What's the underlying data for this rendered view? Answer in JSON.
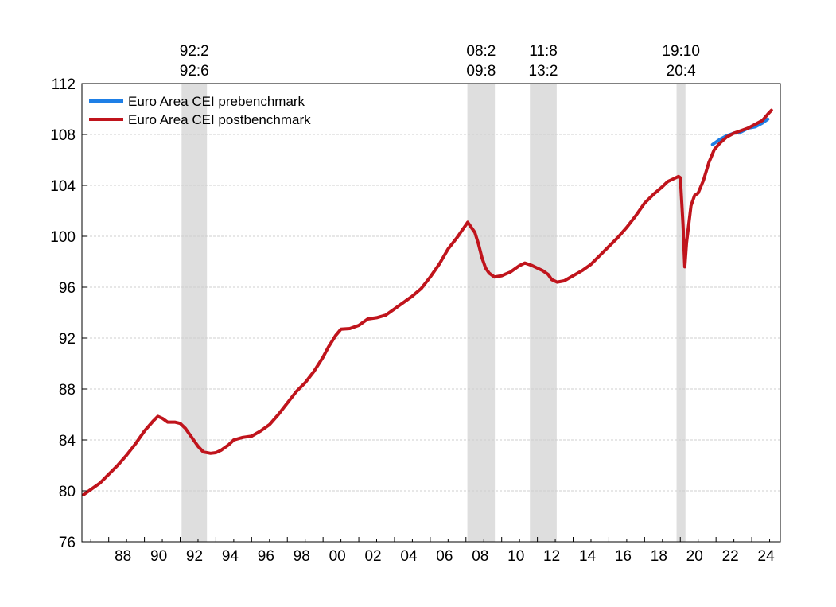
{
  "chart_data": {
    "type": "line",
    "title": "",
    "xlabel": "",
    "ylabel": "",
    "xlim": [
      1986.5,
      2025.6
    ],
    "ylim": [
      76,
      112
    ],
    "y_ticks": [
      76,
      80,
      84,
      88,
      92,
      96,
      100,
      104,
      108,
      112
    ],
    "x_ticks": [
      {
        "x": 1988,
        "label": "88"
      },
      {
        "x": 1990,
        "label": "90"
      },
      {
        "x": 1992,
        "label": "92"
      },
      {
        "x": 1994,
        "label": "94"
      },
      {
        "x": 1996,
        "label": "96"
      },
      {
        "x": 1998,
        "label": "98"
      },
      {
        "x": 2000,
        "label": "00"
      },
      {
        "x": 2002,
        "label": "02"
      },
      {
        "x": 2004,
        "label": "04"
      },
      {
        "x": 2006,
        "label": "06"
      },
      {
        "x": 2008,
        "label": "08"
      },
      {
        "x": 2010,
        "label": "10"
      },
      {
        "x": 2012,
        "label": "12"
      },
      {
        "x": 2014,
        "label": "14"
      },
      {
        "x": 2016,
        "label": "16"
      },
      {
        "x": 2018,
        "label": "18"
      },
      {
        "x": 2020,
        "label": "20"
      },
      {
        "x": 2022,
        "label": "22"
      },
      {
        "x": 2024,
        "label": "24"
      }
    ],
    "grid": true,
    "legend_position": "top-left",
    "recessions": [
      {
        "start": 1992.08,
        "end": 1993.5,
        "peak_label": "92:2",
        "trough_label": "92:6"
      },
      {
        "start": 2008.08,
        "end": 2009.62,
        "peak_label": "08:2",
        "trough_label": "09:8"
      },
      {
        "start": 2011.58,
        "end": 2013.08,
        "peak_label": "11:8",
        "trough_label": "13:2"
      },
      {
        "start": 2019.79,
        "end": 2020.29,
        "peak_label": "19:10",
        "trough_label": "20:4"
      }
    ],
    "series": [
      {
        "name": "Euro Area CEI prebenchmark",
        "color": "#1E7FE6",
        "points": [
          [
            2021.8,
            107.2
          ],
          [
            2022.2,
            107.6
          ],
          [
            2022.6,
            107.9
          ],
          [
            2023.0,
            108.1
          ],
          [
            2023.4,
            108.2
          ],
          [
            2023.8,
            108.5
          ],
          [
            2024.2,
            108.6
          ],
          [
            2024.6,
            108.9
          ],
          [
            2024.9,
            109.2
          ]
        ]
      },
      {
        "name": "Euro Area CEI postbenchmark",
        "color": "#C0141C",
        "points": [
          [
            1986.6,
            79.7
          ],
          [
            1987.0,
            80.1
          ],
          [
            1987.5,
            80.6
          ],
          [
            1988.0,
            81.3
          ],
          [
            1988.5,
            82.0
          ],
          [
            1989.0,
            82.8
          ],
          [
            1989.5,
            83.7
          ],
          [
            1990.0,
            84.7
          ],
          [
            1990.5,
            85.5
          ],
          [
            1990.75,
            85.85
          ],
          [
            1991.0,
            85.7
          ],
          [
            1991.3,
            85.4
          ],
          [
            1991.7,
            85.4
          ],
          [
            1992.0,
            85.3
          ],
          [
            1992.3,
            84.9
          ],
          [
            1992.7,
            84.1
          ],
          [
            1993.0,
            83.5
          ],
          [
            1993.3,
            83.05
          ],
          [
            1993.7,
            82.95
          ],
          [
            1994.0,
            83.0
          ],
          [
            1994.3,
            83.2
          ],
          [
            1994.7,
            83.6
          ],
          [
            1995.0,
            84.0
          ],
          [
            1995.5,
            84.2
          ],
          [
            1996.0,
            84.3
          ],
          [
            1996.5,
            84.7
          ],
          [
            1997.0,
            85.2
          ],
          [
            1997.5,
            86.0
          ],
          [
            1998.0,
            86.9
          ],
          [
            1998.5,
            87.8
          ],
          [
            1999.0,
            88.5
          ],
          [
            1999.5,
            89.4
          ],
          [
            2000.0,
            90.5
          ],
          [
            2000.3,
            91.3
          ],
          [
            2000.7,
            92.2
          ],
          [
            2001.0,
            92.7
          ],
          [
            2001.5,
            92.75
          ],
          [
            2002.0,
            93.0
          ],
          [
            2002.5,
            93.5
          ],
          [
            2003.0,
            93.6
          ],
          [
            2003.5,
            93.8
          ],
          [
            2004.0,
            94.3
          ],
          [
            2004.5,
            94.8
          ],
          [
            2005.0,
            95.3
          ],
          [
            2005.5,
            95.9
          ],
          [
            2006.0,
            96.8
          ],
          [
            2006.5,
            97.8
          ],
          [
            2007.0,
            99.0
          ],
          [
            2007.5,
            99.9
          ],
          [
            2007.8,
            100.5
          ],
          [
            2008.0,
            100.9
          ],
          [
            2008.1,
            101.1
          ],
          [
            2008.3,
            100.7
          ],
          [
            2008.5,
            100.3
          ],
          [
            2008.7,
            99.4
          ],
          [
            2008.9,
            98.3
          ],
          [
            2009.1,
            97.5
          ],
          [
            2009.3,
            97.1
          ],
          [
            2009.6,
            96.8
          ],
          [
            2010.0,
            96.9
          ],
          [
            2010.5,
            97.2
          ],
          [
            2011.0,
            97.7
          ],
          [
            2011.3,
            97.9
          ],
          [
            2011.7,
            97.7
          ],
          [
            2012.0,
            97.5
          ],
          [
            2012.3,
            97.3
          ],
          [
            2012.6,
            97.0
          ],
          [
            2012.8,
            96.6
          ],
          [
            2013.1,
            96.4
          ],
          [
            2013.5,
            96.5
          ],
          [
            2014.0,
            96.9
          ],
          [
            2014.5,
            97.3
          ],
          [
            2015.0,
            97.8
          ],
          [
            2015.5,
            98.5
          ],
          [
            2016.0,
            99.2
          ],
          [
            2016.5,
            99.9
          ],
          [
            2017.0,
            100.7
          ],
          [
            2017.5,
            101.6
          ],
          [
            2018.0,
            102.6
          ],
          [
            2018.5,
            103.3
          ],
          [
            2019.0,
            103.9
          ],
          [
            2019.3,
            104.3
          ],
          [
            2019.6,
            104.5
          ],
          [
            2019.9,
            104.7
          ],
          [
            2020.0,
            104.6
          ],
          [
            2020.15,
            101.0
          ],
          [
            2020.25,
            97.6
          ],
          [
            2020.35,
            99.5
          ],
          [
            2020.6,
            102.4
          ],
          [
            2020.8,
            103.2
          ],
          [
            2021.0,
            103.4
          ],
          [
            2021.3,
            104.4
          ],
          [
            2021.6,
            105.8
          ],
          [
            2021.9,
            106.8
          ],
          [
            2022.2,
            107.3
          ],
          [
            2022.6,
            107.8
          ],
          [
            2023.0,
            108.1
          ],
          [
            2023.4,
            108.3
          ],
          [
            2023.8,
            108.5
          ],
          [
            2024.2,
            108.8
          ],
          [
            2024.6,
            109.1
          ],
          [
            2024.9,
            109.6
          ],
          [
            2025.1,
            109.9
          ]
        ]
      }
    ]
  }
}
